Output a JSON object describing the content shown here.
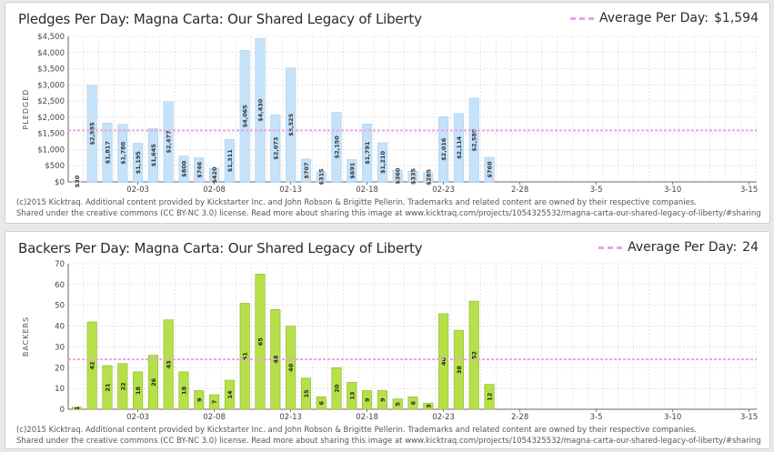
{
  "colors": {
    "pledge_bar": "#c6e2f8",
    "pledge_stroke": "#a9cfee",
    "backer_bar": "#b5e04a",
    "backer_stroke": "#8cb92c",
    "average_line": "#e8a3e3",
    "grid": "#d6d6d6"
  },
  "chart_data": [
    {
      "type": "bar",
      "title": "Pledges Per Day: Magna Carta: Our Shared Legacy of Liberty",
      "ylabel": "PLEDGED",
      "ylim": [
        0,
        4500
      ],
      "yticks": [
        0,
        500,
        1000,
        1500,
        2000,
        2500,
        3000,
        3500,
        4000,
        4500
      ],
      "ytick_labels": [
        "$0",
        "$500",
        "$1,000",
        "$1,500",
        "$2,000",
        "$2,500",
        "$3,000",
        "$3,500",
        "$4,000",
        "$4,500"
      ],
      "x_tick_labels": [
        "02-03",
        "02-08",
        "02-13",
        "02-18",
        "02-23",
        "2-28",
        "3-5",
        "3-10",
        "3-15"
      ],
      "average": 1594,
      "average_label": "Average Per Day:",
      "average_text": "$1,594",
      "values": [
        30,
        2985,
        1817,
        1780,
        1195,
        1645,
        2477,
        800,
        746,
        420,
        1311,
        4065,
        4430,
        2073,
        3525,
        707,
        315,
        2150,
        691,
        1791,
        1210,
        360,
        335,
        285,
        2016,
        2114,
        2589,
        760
      ],
      "labels": [
        "$30",
        "$2,985",
        "$1,817",
        "$1,780",
        "$1,195",
        "$1,645",
        "$2,477",
        "$800",
        "$746",
        "$420",
        "$1,311",
        "$4,065",
        "$4,430",
        "$2,073",
        "$3,525",
        "$707",
        "$315",
        "$2,150",
        "$691",
        "$1,791",
        "$1,210",
        "$360",
        "$335",
        "$285",
        "$2,016",
        "$2,114",
        "$2,589",
        "$760"
      ],
      "footer_line1": "(c)2015 Kicktraq. Additional content provided by Kickstarter Inc. and John Robson & Brigitte Pellerin. Trademarks and related content are owned by their respective companies.",
      "footer_line2": "Shared under the creative commons (CC BY-NC 3.0) license. Read more about sharing this image at www.kicktraq.com/projects/1054325532/magna-carta-our-shared-legacy-of-liberty/#sharing"
    },
    {
      "type": "bar",
      "title": "Backers Per Day: Magna Carta: Our Shared Legacy of Liberty",
      "ylabel": "BACKERS",
      "ylim": [
        0,
        70
      ],
      "yticks": [
        0,
        10,
        20,
        30,
        40,
        50,
        60,
        70
      ],
      "ytick_labels": [
        "0",
        "10",
        "20",
        "30",
        "40",
        "50",
        "60",
        "70"
      ],
      "x_tick_labels": [
        "02-03",
        "02-08",
        "02-13",
        "02-18",
        "02-23",
        "2-28",
        "3-5",
        "3-10",
        "3-15"
      ],
      "average": 24,
      "average_label": "Average Per Day:",
      "average_text": "24",
      "values": [
        1,
        42,
        21,
        22,
        18,
        26,
        43,
        18,
        9,
        7,
        14,
        51,
        65,
        48,
        40,
        15,
        6,
        20,
        13,
        9,
        9,
        5,
        6,
        3,
        46,
        38,
        52,
        12
      ],
      "labels": [
        "1",
        "42",
        "21",
        "22",
        "18",
        "26",
        "43",
        "18",
        "9",
        "7",
        "14",
        "51",
        "65",
        "48",
        "40",
        "15",
        "6",
        "20",
        "13",
        "9",
        "9",
        "5",
        "6",
        "3",
        "46",
        "38",
        "52",
        "12"
      ],
      "footer_line1": "(c)2015 Kicktraq. Additional content provided by Kickstarter Inc. and John Robson & Brigitte Pellerin. Trademarks and related content are owned by their respective companies.",
      "footer_line2": "Shared under the creative commons (CC BY-NC 3.0) license. Read more about sharing this image at www.kicktraq.com/projects/1054325532/magna-carta-our-shared-legacy-of-liberty/#sharing"
    }
  ]
}
